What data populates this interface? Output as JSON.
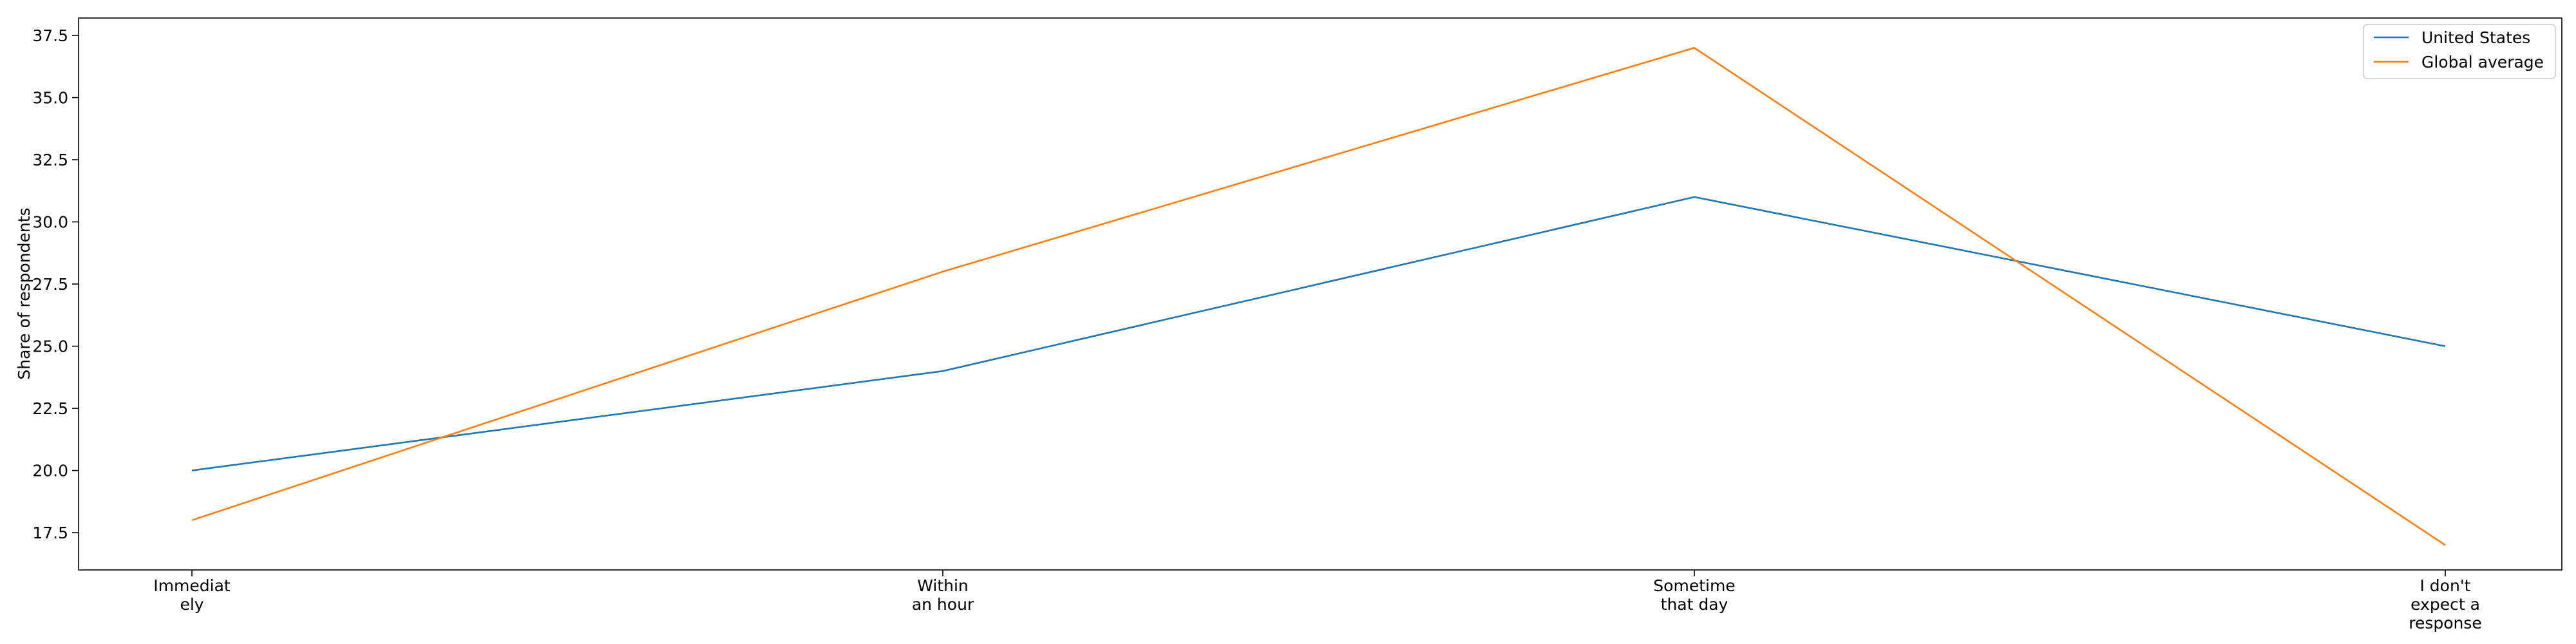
{
  "chart_data": {
    "type": "line",
    "title": "",
    "xlabel": "",
    "ylabel": "Share of respondents",
    "categories": [
      [
        "Immediat",
        "ely"
      ],
      [
        "Within",
        "an hour"
      ],
      [
        "Sometime",
        "that day"
      ],
      [
        "I don't",
        "expect a",
        "response"
      ]
    ],
    "ylim": [
      16,
      38.2
    ],
    "yticks": [
      17.5,
      20.0,
      22.5,
      25.0,
      27.5,
      30.0,
      32.5,
      35.0,
      37.5
    ],
    "grid": false,
    "legend_position": "top-right",
    "series": [
      {
        "name": "United States",
        "color": "#1f77b4",
        "values": [
          20,
          24,
          31,
          25
        ]
      },
      {
        "name": "Global average",
        "color": "#ff7f0e",
        "values": [
          18,
          28,
          37,
          17
        ]
      }
    ]
  }
}
